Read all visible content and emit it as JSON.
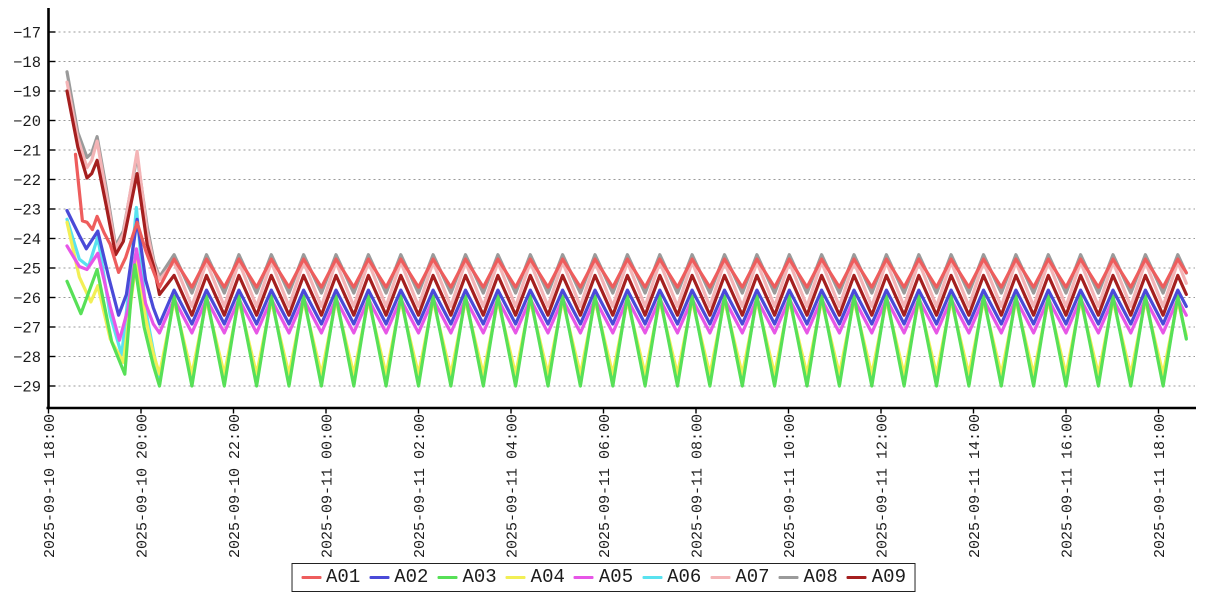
{
  "page": {
    "background": "#ffffff"
  },
  "legend": {
    "position": "bottom-center",
    "entries": [
      {
        "label": "A01",
        "color": "#ee5d5d"
      },
      {
        "label": "A02",
        "color": "#4a4ad8"
      },
      {
        "label": "A03",
        "color": "#57e057"
      },
      {
        "label": "A04",
        "color": "#f2ef55"
      },
      {
        "label": "A05",
        "color": "#e756e7"
      },
      {
        "label": "A06",
        "color": "#59e2ef"
      },
      {
        "label": "A07",
        "color": "#f4b4b6"
      },
      {
        "label": "A08",
        "color": "#9a9a9a"
      },
      {
        "label": "A09",
        "color": "#a51f1f"
      }
    ]
  },
  "chart_data": {
    "type": "line",
    "title": "",
    "xlabel": "",
    "ylabel": "",
    "grid": "horizontal-dashed",
    "legend_position": "bottom-center",
    "x_axis": {
      "unit": "minutes since 2025-09-10 18:00",
      "range_minutes": [
        24,
        1476
      ],
      "ticks": [
        {
          "minute": 0,
          "label": "2025-09-10 18:00"
        },
        {
          "minute": 120,
          "label": "2025-09-10 20:00"
        },
        {
          "minute": 240,
          "label": "2025-09-10 22:00"
        },
        {
          "minute": 360,
          "label": "2025-09-11 00:00"
        },
        {
          "minute": 480,
          "label": "2025-09-11 02:00"
        },
        {
          "minute": 600,
          "label": "2025-09-11 04:00"
        },
        {
          "minute": 720,
          "label": "2025-09-11 06:00"
        },
        {
          "minute": 840,
          "label": "2025-09-11 08:00"
        },
        {
          "minute": 960,
          "label": "2025-09-11 10:00"
        },
        {
          "minute": 1080,
          "label": "2025-09-11 12:00"
        },
        {
          "minute": 1200,
          "label": "2025-09-11 14:00"
        },
        {
          "minute": 1320,
          "label": "2025-09-11 16:00"
        },
        {
          "minute": 1440,
          "label": "2025-09-11 18:00"
        }
      ]
    },
    "y_axis": {
      "range": [
        -29.75,
        -16.25
      ],
      "ticks": [
        {
          "value": -17,
          "label": "−17"
        },
        {
          "value": -18,
          "label": "−18"
        },
        {
          "value": -19,
          "label": "−19"
        },
        {
          "value": -20,
          "label": "−20"
        },
        {
          "value": -21,
          "label": "−21"
        },
        {
          "value": -22,
          "label": "−22"
        },
        {
          "value": -23,
          "label": "−23"
        },
        {
          "value": -24,
          "label": "−24"
        },
        {
          "value": -25,
          "label": "−25"
        },
        {
          "value": -26,
          "label": "−26"
        },
        {
          "value": -27,
          "label": "−27"
        },
        {
          "value": -28,
          "label": "−28"
        },
        {
          "value": -29,
          "label": "−29"
        }
      ]
    },
    "draw_order": [
      "A08",
      "A07",
      "A06",
      "A04",
      "A05",
      "A03",
      "A09",
      "A02",
      "A01"
    ],
    "series": [
      {
        "name": "A01",
        "color": "#ee5d5d",
        "keyframes": [
          [
            35,
            -21.15
          ],
          [
            44,
            -23.4
          ],
          [
            50,
            -23.45
          ],
          [
            57,
            -23.7
          ],
          [
            63,
            -23.25
          ],
          [
            72,
            -23.8
          ],
          [
            80,
            -24.2
          ],
          [
            91,
            -25.15
          ],
          [
            100,
            -24.65
          ],
          [
            115,
            -23.45
          ],
          [
            126,
            -24.4
          ],
          [
            136,
            -25.1
          ],
          [
            144,
            -25.65
          ]
        ],
        "steady": {
          "start_minute": 144,
          "period_minutes": 42,
          "rise_minutes": 19,
          "peak": -24.7,
          "trough": -25.65
        }
      },
      {
        "name": "A02",
        "color": "#4a4ad8",
        "keyframes": [
          [
            24,
            -23.05
          ],
          [
            40,
            -23.9
          ],
          [
            49,
            -24.35
          ],
          [
            64,
            -23.75
          ],
          [
            78,
            -25.3
          ],
          [
            91,
            -26.6
          ],
          [
            101,
            -25.9
          ],
          [
            115,
            -23.35
          ],
          [
            126,
            -25.4
          ],
          [
            136,
            -26.35
          ],
          [
            144,
            -26.9
          ]
        ],
        "steady": {
          "start_minute": 144,
          "period_minutes": 42,
          "rise_minutes": 19,
          "peak": -25.75,
          "trough": -26.9
        }
      },
      {
        "name": "A03",
        "color": "#57e057",
        "keyframes": [
          [
            24,
            -25.45
          ],
          [
            42,
            -26.55
          ],
          [
            63,
            -25.05
          ],
          [
            82,
            -27.5
          ],
          [
            99,
            -28.6
          ],
          [
            107,
            -26.0
          ],
          [
            112,
            -24.9
          ],
          [
            124,
            -27.0
          ],
          [
            136,
            -28.3
          ],
          [
            144,
            -29.0
          ]
        ],
        "steady": {
          "start_minute": 144,
          "period_minutes": 42,
          "rise_minutes": 19,
          "peak": -25.95,
          "trough": -29.0
        }
      },
      {
        "name": "A04",
        "color": "#f2ef55",
        "keyframes": [
          [
            24,
            -23.45
          ],
          [
            40,
            -25.3
          ],
          [
            55,
            -26.15
          ],
          [
            64,
            -25.6
          ],
          [
            80,
            -27.4
          ],
          [
            97,
            -28.2
          ],
          [
            108,
            -25.9
          ],
          [
            114,
            -24.7
          ],
          [
            126,
            -26.7
          ],
          [
            136,
            -27.9
          ],
          [
            144,
            -28.6
          ]
        ],
        "steady": {
          "start_minute": 144,
          "period_minutes": 42,
          "rise_minutes": 19,
          "peak": -26.1,
          "trough": -28.6
        }
      },
      {
        "name": "A05",
        "color": "#e756e7",
        "keyframes": [
          [
            24,
            -24.25
          ],
          [
            40,
            -24.95
          ],
          [
            50,
            -25.05
          ],
          [
            64,
            -24.5
          ],
          [
            80,
            -26.3
          ],
          [
            92,
            -27.45
          ],
          [
            103,
            -26.4
          ],
          [
            114,
            -24.35
          ],
          [
            126,
            -26.2
          ],
          [
            136,
            -26.9
          ],
          [
            144,
            -27.2
          ]
        ],
        "steady": {
          "start_minute": 144,
          "period_minutes": 42,
          "rise_minutes": 19,
          "peak": -26.05,
          "trough": -27.2
        }
      },
      {
        "name": "A06",
        "color": "#59e2ef",
        "keyframes": [
          [
            24,
            -23.35
          ],
          [
            40,
            -24.7
          ],
          [
            52,
            -24.95
          ],
          [
            64,
            -23.95
          ],
          [
            80,
            -26.6
          ],
          [
            95,
            -27.95
          ],
          [
            106,
            -25.3
          ],
          [
            114,
            -22.95
          ],
          [
            126,
            -26.4
          ],
          [
            136,
            -27.8
          ],
          [
            144,
            -28.8
          ]
        ],
        "steady": {
          "start_minute": 144,
          "period_minutes": 42,
          "rise_minutes": 19,
          "peak": -26.05,
          "trough": -28.8
        }
      },
      {
        "name": "A07",
        "color": "#f4b4b6",
        "keyframes": [
          [
            24,
            -18.7
          ],
          [
            38,
            -20.6
          ],
          [
            50,
            -21.6
          ],
          [
            56,
            -21.35
          ],
          [
            63,
            -20.7
          ],
          [
            75,
            -22.5
          ],
          [
            87,
            -24.35
          ],
          [
            97,
            -23.85
          ],
          [
            115,
            -21.05
          ],
          [
            128,
            -23.8
          ],
          [
            137,
            -24.9
          ],
          [
            144,
            -25.4
          ]
        ],
        "steady": {
          "start_minute": 144,
          "period_minutes": 42,
          "rise_minutes": 19,
          "peak": -24.8,
          "trough": -26.3
        }
      },
      {
        "name": "A08",
        "color": "#9a9a9a",
        "keyframes": [
          [
            24,
            -18.35
          ],
          [
            38,
            -20.4
          ],
          [
            50,
            -21.25
          ],
          [
            56,
            -21.1
          ],
          [
            63,
            -20.55
          ],
          [
            75,
            -22.3
          ],
          [
            87,
            -24.25
          ],
          [
            97,
            -23.75
          ],
          [
            115,
            -21.2
          ],
          [
            128,
            -23.6
          ],
          [
            137,
            -24.8
          ],
          [
            144,
            -25.3
          ]
        ],
        "steady": {
          "start_minute": 144,
          "period_minutes": 42,
          "rise_minutes": 19,
          "peak": -24.55,
          "trough": -25.85
        }
      },
      {
        "name": "A09",
        "color": "#a51f1f",
        "keyframes": [
          [
            24,
            -19.0
          ],
          [
            38,
            -20.9
          ],
          [
            50,
            -21.95
          ],
          [
            56,
            -21.8
          ],
          [
            63,
            -21.35
          ],
          [
            75,
            -22.9
          ],
          [
            87,
            -24.55
          ],
          [
            97,
            -24.1
          ],
          [
            115,
            -21.8
          ],
          [
            128,
            -24.2
          ],
          [
            137,
            -25.0
          ],
          [
            144,
            -25.9
          ]
        ],
        "steady": {
          "start_minute": 144,
          "period_minutes": 42,
          "rise_minutes": 19,
          "peak": -25.25,
          "trough": -26.6
        }
      }
    ]
  }
}
